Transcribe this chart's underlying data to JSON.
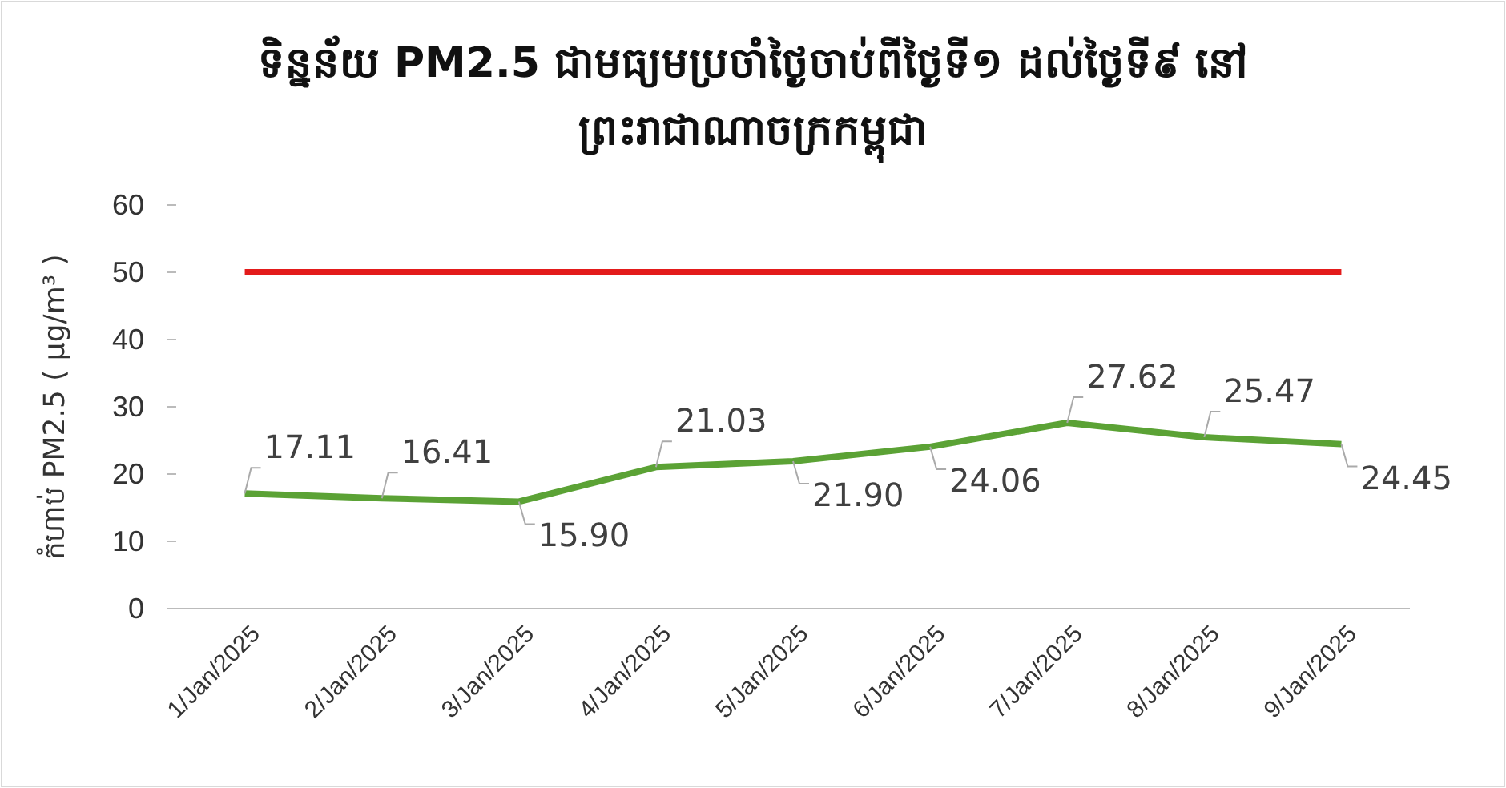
{
  "chart_data": {
    "type": "line",
    "title": "ទិន្នន័យ PM2.5 ជាមធ្យមប្រចាំថ្ងៃចាប់ពីថ្ងៃទី១ ដល់ថ្ងៃទី៩ នៅ ព្រះរាជាណាចក្រកម្ពុជា",
    "ylabel": "កំហាប់ PM2.5 ( µg/m³ )",
    "categories": [
      "1/Jan/2025",
      "2/Jan/2025",
      "3/Jan/2025",
      "4/Jan/2025",
      "5/Jan/2025",
      "6/Jan/2025",
      "7/Jan/2025",
      "8/Jan/2025",
      "9/Jan/2025"
    ],
    "series": [
      {
        "color": "#5ba235",
        "values": [
          17.11,
          16.41,
          15.9,
          21.03,
          21.9,
          24.06,
          27.62,
          25.47,
          24.45
        ],
        "value_labels": [
          "17.11",
          "16.41",
          "15.90",
          "21.03",
          "21.90",
          "24.06",
          "27.62",
          "25.47",
          "24.45"
        ]
      }
    ],
    "ylim": [
      0,
      60
    ],
    "yticks": [
      0,
      10,
      20,
      30,
      40,
      50,
      60
    ],
    "grid": false,
    "marker": "none",
    "line_style": "solid",
    "ref_lines": [
      {
        "axis": "y",
        "value": 50,
        "color": "#e31b1b"
      }
    ]
  }
}
